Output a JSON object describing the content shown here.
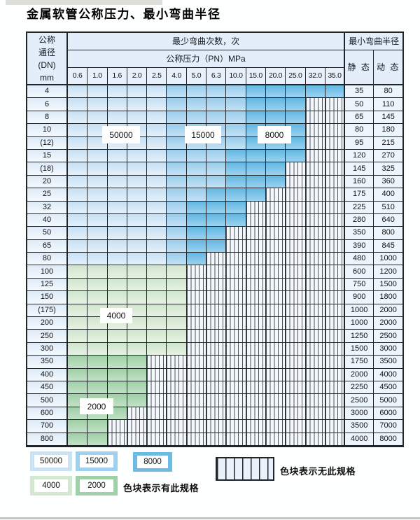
{
  "title": "金属软管公称压力、最小弯曲半径",
  "table": {
    "dn_header": [
      "公称",
      "通径",
      "(DN)",
      "mm"
    ],
    "cycles_header": "最少弯曲次数，次",
    "pressure_header": "公称压力（PN）MPa",
    "radius_header": "最小弯曲半径",
    "static_header": "静 态",
    "dynamic_header": "动 态",
    "pressure_columns": [
      "0.6",
      "1.0",
      "1.6",
      "2.0",
      "2.5",
      "4.0",
      "5.0",
      "6.3",
      "10.0",
      "15.0",
      "20.0",
      "25.0",
      "32.0",
      "35.0"
    ],
    "cell_legend": {
      "L": "50000次-浅蓝",
      "M": "15000次-中蓝",
      "D": "8000次-深蓝",
      "G": "4000次-浅绿",
      "g": "2000次-深绿",
      "x": "无此规格"
    },
    "rows": [
      {
        "dn": "4",
        "cells": "LLLLLMMMMDDDDD",
        "static": "35",
        "dynamic": "80"
      },
      {
        "dn": "6",
        "cells": "LLLLLMMMMDDDxx",
        "static": "50",
        "dynamic": "110"
      },
      {
        "dn": "8",
        "cells": "LLLLLMMMMDDDxx",
        "static": "65",
        "dynamic": "145"
      },
      {
        "dn": "10",
        "cells": "LLLLLMMMMDDDxx",
        "static": "80",
        "dynamic": "180"
      },
      {
        "dn": "(12)",
        "cells": "LLLLLMMMMDDDxx",
        "static": "95",
        "dynamic": "215"
      },
      {
        "dn": "15",
        "cells": "LLLLLMMMDDDDxx",
        "static": "120",
        "dynamic": "270"
      },
      {
        "dn": "(18)",
        "cells": "LLLLLMMMDDDxxx",
        "static": "145",
        "dynamic": "325"
      },
      {
        "dn": "20",
        "cells": "LLLLLMMMDDDxxx",
        "static": "160",
        "dynamic": "360"
      },
      {
        "dn": "25",
        "cells": "LLLLLMMDDDxxxx",
        "static": "175",
        "dynamic": "400"
      },
      {
        "dn": "32",
        "cells": "LLLLLMDDDxxxxx",
        "static": "225",
        "dynamic": "510"
      },
      {
        "dn": "40",
        "cells": "LLLLLMDDDxxxxx",
        "static": "280",
        "dynamic": "640"
      },
      {
        "dn": "50",
        "cells": "LLLLLMDDxxxxxx",
        "static": "350",
        "dynamic": "800"
      },
      {
        "dn": "65",
        "cells": "LLLLLMDDxxxxxx",
        "static": "390",
        "dynamic": "845"
      },
      {
        "dn": "80",
        "cells": "LLLLLMDxxxxxxx",
        "static": "480",
        "dynamic": "1000"
      },
      {
        "dn": "100",
        "cells": "GGGGGGxxxxxxxx",
        "static": "600",
        "dynamic": "1200"
      },
      {
        "dn": "125",
        "cells": "GGGGGGxxxxxxxx",
        "static": "750",
        "dynamic": "1500"
      },
      {
        "dn": "150",
        "cells": "GGGGGGxxxxxxxx",
        "static": "900",
        "dynamic": "1800"
      },
      {
        "dn": "(175)",
        "cells": "GGGGGGxxxxxxxx",
        "static": "1000",
        "dynamic": "2000"
      },
      {
        "dn": "200",
        "cells": "GGGGGGxxxxxxxx",
        "static": "1000",
        "dynamic": "2000"
      },
      {
        "dn": "250",
        "cells": "GGGGGGxxxxxxxx",
        "static": "1250",
        "dynamic": "2500"
      },
      {
        "dn": "300",
        "cells": "GGGGGGxxxxxxxx",
        "static": "1500",
        "dynamic": "3000"
      },
      {
        "dn": "350",
        "cells": "ggggxxxxxxxxxx",
        "static": "1750",
        "dynamic": "3500"
      },
      {
        "dn": "400",
        "cells": "ggggxxxxxxxxxx",
        "static": "2000",
        "dynamic": "4000"
      },
      {
        "dn": "450",
        "cells": "ggggxxxxxxxxxx",
        "static": "2250",
        "dynamic": "4500"
      },
      {
        "dn": "500",
        "cells": "ggggxxxxxxxxxx",
        "static": "2500",
        "dynamic": "5000"
      },
      {
        "dn": "600",
        "cells": "gggxxxxxxxxxxx",
        "static": "3000",
        "dynamic": "6000"
      },
      {
        "dn": "700",
        "cells": "ggxxxxxxxxxxxx",
        "static": "3500",
        "dynamic": "7000"
      },
      {
        "dn": "800",
        "cells": "ggxxxxxxxxxxxx",
        "static": "4000",
        "dynamic": "8000"
      }
    ]
  },
  "overlay_labels": [
    {
      "text": "50000"
    },
    {
      "text": "15000"
    },
    {
      "text": "8000"
    },
    {
      "text": "4000"
    },
    {
      "text": "2000"
    }
  ],
  "legend": {
    "items": [
      {
        "label": "50000",
        "color": "#c9e2f4"
      },
      {
        "label": "15000",
        "color": "#9fd1ee"
      },
      {
        "label": "8000",
        "color": "#6cbbe4"
      },
      {
        "label": "4000",
        "color": "#d3e7d1"
      },
      {
        "label": "2000",
        "color": "#a0d0a7"
      }
    ],
    "has_spec_text": "色块表示有此规格",
    "no_spec_text": "色块表示无此规格"
  },
  "colors": {
    "cycles_50000": "#c9e2f4",
    "cycles_15000": "#9fd1ee",
    "cycles_8000": "#6cbbe4",
    "cycles_4000": "#d3e7d1",
    "cycles_2000": "#a0d0a7",
    "grid_line": "#20252a",
    "header_bg": "#e3eefa"
  }
}
